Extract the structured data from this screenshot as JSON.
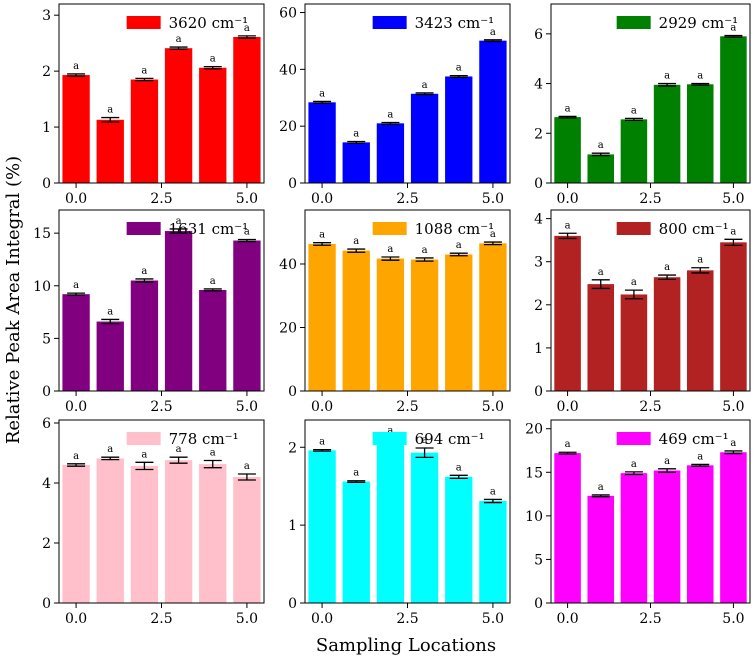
{
  "figure": {
    "ylabel": "Relative Peak Area Integral (%)",
    "xlabel": "Sampling Locations"
  },
  "chart_data": [
    {
      "type": "bar",
      "legend_label": "3620 cm⁻¹",
      "color": "#ff0000",
      "x": [
        0,
        1,
        2,
        3,
        4,
        5
      ],
      "values": [
        1.93,
        1.13,
        1.85,
        2.41,
        2.06,
        2.61
      ],
      "errors": [
        0.02,
        0.04,
        0.02,
        0.02,
        0.02,
        0.02
      ],
      "letters": [
        "a",
        "a",
        "a",
        "a",
        "a",
        "a"
      ],
      "ylim": [
        0,
        3.2
      ],
      "yticks": [
        0,
        1,
        2,
        3
      ],
      "xticks": [
        0.0,
        2.5,
        5.0
      ],
      "xtick_labels": [
        "0.0",
        "2.5",
        "5.0"
      ],
      "legend_position": "top-right"
    },
    {
      "type": "bar",
      "legend_label": "3423 cm⁻¹",
      "color": "#0000ff",
      "x": [
        0,
        1,
        2,
        3,
        4,
        5
      ],
      "values": [
        28.4,
        14.3,
        21.0,
        31.4,
        37.5,
        50.1
      ],
      "errors": [
        0.3,
        0.3,
        0.3,
        0.3,
        0.3,
        0.3
      ],
      "letters": [
        "a",
        "a",
        "a",
        "a",
        "a",
        "a"
      ],
      "ylim": [
        0,
        63
      ],
      "yticks": [
        0,
        20,
        40,
        60
      ],
      "xticks": [
        0.0,
        2.5,
        5.0
      ],
      "xtick_labels": [
        "0.0",
        "2.5",
        "5.0"
      ],
      "legend_position": "top-right"
    },
    {
      "type": "bar",
      "legend_label": "2929 cm⁻¹",
      "color": "#008000",
      "x": [
        0,
        1,
        2,
        3,
        4,
        5
      ],
      "values": [
        2.65,
        1.15,
        2.56,
        3.95,
        3.97,
        5.9
      ],
      "errors": [
        0.03,
        0.05,
        0.04,
        0.05,
        0.03,
        0.03
      ],
      "letters": [
        "a",
        "a",
        "a",
        "a",
        "a",
        "a"
      ],
      "ylim": [
        0,
        7.2
      ],
      "yticks": [
        0,
        2,
        4,
        6
      ],
      "xticks": [
        0.0,
        2.5,
        5.0
      ],
      "xtick_labels": [
        "0.0",
        "2.5",
        "5.0"
      ],
      "legend_position": "top-right"
    },
    {
      "type": "bar",
      "legend_label": "1631 cm⁻¹",
      "color": "#800080",
      "x": [
        0,
        1,
        2,
        3,
        4,
        5
      ],
      "values": [
        9.2,
        6.6,
        10.5,
        15.2,
        9.6,
        14.3
      ],
      "errors": [
        0.1,
        0.2,
        0.15,
        0.2,
        0.1,
        0.1
      ],
      "letters": [
        "a",
        "a",
        "a",
        "a",
        "a",
        "a"
      ],
      "ylim": [
        0,
        17.2
      ],
      "yticks": [
        0,
        5,
        10,
        15
      ],
      "xticks": [
        0.0,
        2.5,
        5.0
      ],
      "xtick_labels": [
        "0.0",
        "2.5",
        "5.0"
      ],
      "legend_position": "top-right"
    },
    {
      "type": "bar",
      "legend_label": "1088 cm⁻¹",
      "color": "#ffa500",
      "x": [
        0,
        1,
        2,
        3,
        4,
        5
      ],
      "values": [
        46.3,
        44.2,
        41.7,
        41.4,
        43.0,
        46.5
      ],
      "errors": [
        0.4,
        0.5,
        0.5,
        0.5,
        0.4,
        0.4
      ],
      "letters": [
        "a",
        "a",
        "a",
        "a",
        "a",
        "a"
      ],
      "ylim": [
        0,
        57
      ],
      "yticks": [
        0,
        20,
        40
      ],
      "xticks": [
        0.0,
        2.5,
        5.0
      ],
      "xtick_labels": [
        "0.0",
        "2.5",
        "5.0"
      ],
      "legend_position": "top-right"
    },
    {
      "type": "bar",
      "legend_label": "800 cm⁻¹",
      "color": "#b22222",
      "x": [
        0,
        1,
        2,
        3,
        4,
        5
      ],
      "values": [
        3.6,
        2.48,
        2.24,
        2.64,
        2.8,
        3.45
      ],
      "errors": [
        0.06,
        0.1,
        0.1,
        0.05,
        0.06,
        0.07
      ],
      "letters": [
        "a",
        "a",
        "a",
        "a",
        "a",
        "a"
      ],
      "ylim": [
        0,
        4.2
      ],
      "yticks": [
        0,
        1,
        2,
        3,
        4
      ],
      "xticks": [
        0.0,
        2.5,
        5.0
      ],
      "xtick_labels": [
        "0.0",
        "2.5",
        "5.0"
      ],
      "legend_position": "top-right"
    },
    {
      "type": "bar",
      "legend_label": "778 cm⁻¹",
      "color": "#ffc0cb",
      "x": [
        0,
        1,
        2,
        3,
        4,
        5
      ],
      "values": [
        4.6,
        4.82,
        4.57,
        4.76,
        4.63,
        4.2
      ],
      "errors": [
        0.04,
        0.04,
        0.12,
        0.1,
        0.12,
        0.1
      ],
      "letters": [
        "a",
        "a",
        "a",
        "a",
        "a",
        "a"
      ],
      "ylim": [
        0,
        6.1
      ],
      "yticks": [
        0,
        2,
        4,
        6
      ],
      "xticks": [
        0.0,
        2.5,
        5.0
      ],
      "xtick_labels": [
        "0.0",
        "2.5",
        "5.0"
      ],
      "legend_position": "top-right"
    },
    {
      "type": "bar",
      "legend_label": "694 cm⁻¹",
      "color": "#00ffff",
      "x": [
        0,
        1,
        2,
        3,
        4,
        5
      ],
      "values": [
        1.96,
        1.56,
        2.08,
        1.93,
        1.62,
        1.31
      ],
      "errors": [
        0.01,
        0.01,
        0.03,
        0.06,
        0.02,
        0.02
      ],
      "letters": [
        "a",
        "a",
        "a",
        "a",
        "a",
        "a"
      ],
      "ylim": [
        0,
        2.35
      ],
      "yticks": [
        0,
        1,
        2
      ],
      "xticks": [
        0.0,
        2.5,
        5.0
      ],
      "xtick_labels": [
        "0.0",
        "2.5",
        "5.0"
      ],
      "legend_position": "top-right"
    },
    {
      "type": "bar",
      "legend_label": "469 cm⁻¹",
      "color": "#ff00ff",
      "x": [
        0,
        1,
        2,
        3,
        4,
        5
      ],
      "values": [
        17.2,
        12.3,
        14.9,
        15.2,
        15.8,
        17.3
      ],
      "errors": [
        0.1,
        0.1,
        0.15,
        0.2,
        0.1,
        0.15
      ],
      "letters": [
        "a",
        "a",
        "a",
        "a",
        "a",
        "a"
      ],
      "ylim": [
        0,
        21
      ],
      "yticks": [
        0,
        5,
        10,
        15,
        20
      ],
      "xticks": [
        0.0,
        2.5,
        5.0
      ],
      "xtick_labels": [
        "0.0",
        "2.5",
        "5.0"
      ],
      "legend_position": "top-right"
    }
  ]
}
